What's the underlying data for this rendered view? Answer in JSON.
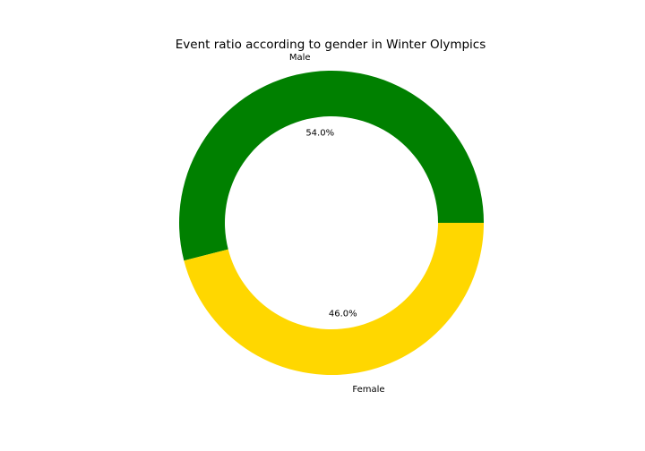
{
  "chart_data": {
    "type": "pie",
    "title": "Event ratio according to gender in Winter Olympics",
    "donut": true,
    "categories": [
      "Male",
      "Female"
    ],
    "values": [
      54.0,
      46.0
    ],
    "percent_labels": [
      "54.0%",
      "46.0%"
    ],
    "colors": [
      "#008000",
      "#FFD700"
    ],
    "start_angle_deg": 0,
    "direction": "counterclockwise",
    "legend": "none"
  }
}
